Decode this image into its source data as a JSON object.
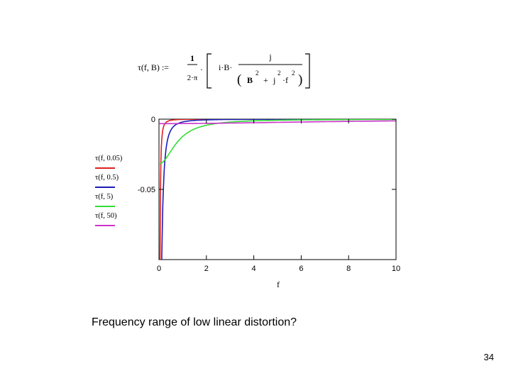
{
  "formula": {
    "lhs": "τ(f, B) :=",
    "frac1_num": "1",
    "frac1_den": "2·π",
    "mid": "·",
    "iB": "i·B·",
    "frac2_num": "j",
    "den_B": "B",
    "den_exp": "2",
    "den_plus": "+",
    "den_j": "j",
    "den_f": "·f",
    "den_exp2": "2"
  },
  "caption": "Frequency range of low linear distortion?",
  "page_number": "34",
  "chart_data": {
    "type": "line",
    "title": "",
    "xlabel": "f",
    "ylabel": "",
    "xlim": [
      0,
      10
    ],
    "ylim": [
      -0.1,
      0
    ],
    "x_ticks": [
      "0",
      "2",
      "4",
      "6",
      "8",
      "10"
    ],
    "y_ticks": [
      {
        "value": 0,
        "label": "0"
      },
      {
        "value": -0.05,
        "label": "-0.05"
      }
    ],
    "grid": false,
    "legend_position": "left",
    "series": [
      {
        "name": "τ(f, 0.05)",
        "color": "#e02020",
        "B": 0.05
      },
      {
        "name": "τ(f, 0.5)",
        "color": "#1c1cb8",
        "B": 0.5
      },
      {
        "name": "τ(f, 5)",
        "color": "#33dd33",
        "B": 5
      },
      {
        "name": "τ(f, 50)",
        "color": "#cc33cc",
        "B": 50
      }
    ]
  }
}
